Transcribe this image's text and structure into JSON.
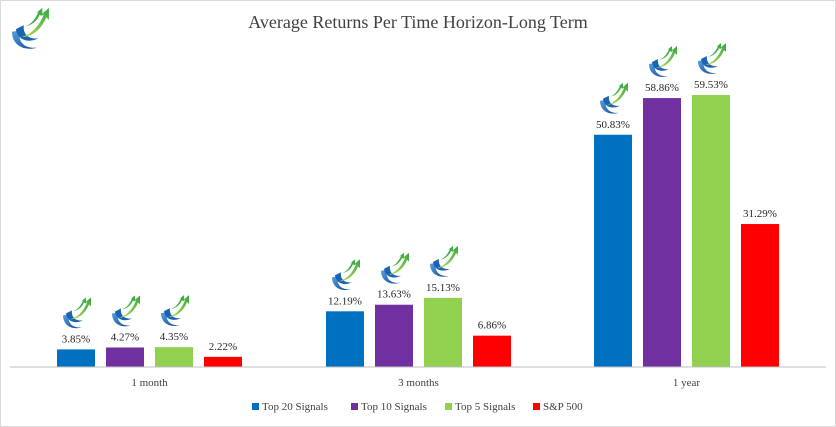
{
  "chart_data": {
    "type": "bar",
    "title": "Average Returns Per Time Horizon-Long Term",
    "categories": [
      "1 month",
      "3 months",
      "1 year"
    ],
    "series": [
      {
        "name": "Top 20 Signals",
        "color": "#0070C0",
        "values": [
          3.85,
          12.19,
          50.83
        ],
        "labels": [
          "3.85%",
          "12.19%",
          "50.83%"
        ]
      },
      {
        "name": "Top 10 Signals",
        "color": "#7030A0",
        "values": [
          4.27,
          13.63,
          58.86
        ],
        "labels": [
          "4.27%",
          "13.63%",
          "58.86%"
        ]
      },
      {
        "name": "Top 5 Signals",
        "color": "#92D050",
        "values": [
          4.35,
          15.13,
          59.53
        ],
        "labels": [
          "4.35%",
          "15.13%",
          "59.53%"
        ]
      },
      {
        "name": "S&P 500",
        "color": "#FF0000",
        "values": [
          2.22,
          6.86,
          31.29
        ],
        "labels": [
          "2.22%",
          "6.86%",
          "31.29%"
        ]
      }
    ],
    "logo_over_series": [
      "Top 20 Signals",
      "Top 10 Signals",
      "Top 5 Signals"
    ],
    "xlabel": "",
    "ylabel": "",
    "ylim": [
      0,
      64
    ],
    "grid": false,
    "legend_position": "bottom",
    "y_axis_visible": false
  }
}
